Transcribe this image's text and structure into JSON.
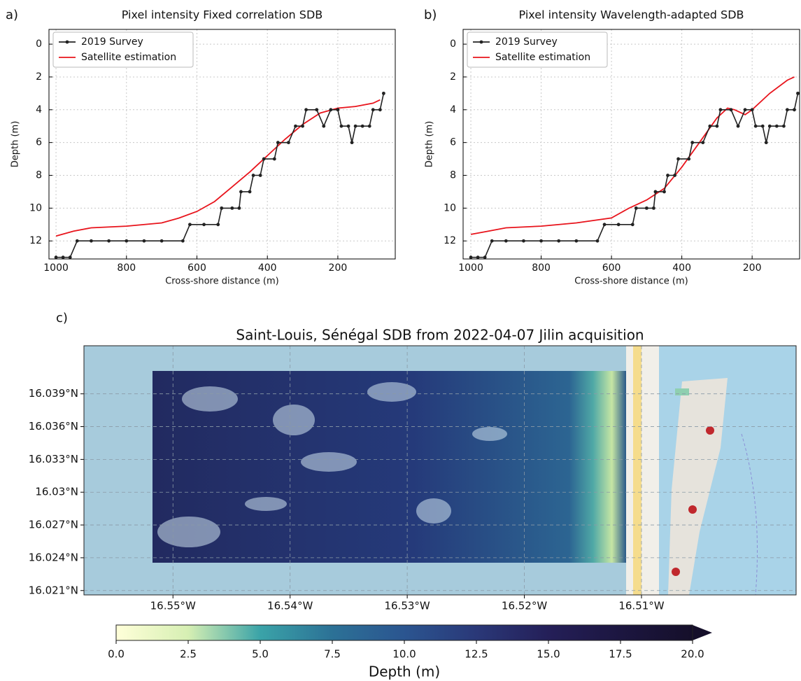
{
  "chart_data": [
    {
      "type": "line",
      "panel_label": "a)",
      "title": "Pixel intensity Fixed correlation SDB",
      "x_label": "Cross-shore distance (m)",
      "y_label": "Depth (m)",
      "xlim": [
        1020,
        37
      ],
      "ylim": [
        13.1,
        -0.9
      ],
      "xticks": [
        1000,
        800,
        600,
        400,
        200
      ],
      "yticks": [
        0,
        2,
        4,
        6,
        8,
        10,
        12
      ],
      "grid": true,
      "legend": "upper left",
      "series": [
        {
          "name": "2019 Survey",
          "color": "#222222",
          "marker": true,
          "x": [
            1000,
            980,
            960,
            940,
            900,
            850,
            800,
            750,
            700,
            640,
            620,
            580,
            540,
            530,
            500,
            480,
            475,
            450,
            440,
            420,
            410,
            380,
            370,
            340,
            320,
            300,
            290,
            260,
            240,
            220,
            200,
            190,
            170,
            160,
            150,
            130,
            110,
            100,
            80,
            70
          ],
          "values": [
            13,
            13,
            13,
            12,
            12,
            12,
            12,
            12,
            12,
            12,
            11,
            11,
            11,
            10,
            10,
            10,
            9,
            9,
            8,
            8,
            7,
            7,
            6,
            6,
            5,
            5,
            4,
            4,
            5,
            4,
            4,
            5,
            5,
            6,
            5,
            5,
            5,
            4,
            4,
            3
          ]
        },
        {
          "name": "Satellite estimation",
          "color": "#e8141c",
          "marker": false,
          "x": [
            1000,
            950,
            900,
            800,
            700,
            650,
            600,
            550,
            500,
            450,
            400,
            350,
            300,
            250,
            200,
            150,
            100,
            80
          ],
          "values": [
            11.7,
            11.4,
            11.2,
            11.1,
            10.9,
            10.6,
            10.2,
            9.6,
            8.7,
            7.8,
            6.8,
            5.8,
            4.9,
            4.2,
            3.9,
            3.8,
            3.6,
            3.4
          ]
        }
      ]
    },
    {
      "type": "line",
      "panel_label": "b)",
      "title": "Pixel intensity Wavelength-adapted SDB",
      "x_label": "Cross-shore distance (m)",
      "y_label": "Depth (m)",
      "xlim": [
        1022,
        65
      ],
      "ylim": [
        13.1,
        -0.9
      ],
      "xticks": [
        1000,
        800,
        600,
        400,
        200
      ],
      "yticks": [
        0,
        2,
        4,
        6,
        8,
        10,
        12
      ],
      "grid": true,
      "legend": "upper left",
      "series": [
        {
          "name": "2019 Survey",
          "color": "#222222",
          "marker": true,
          "x": [
            1000,
            980,
            960,
            940,
            900,
            850,
            800,
            750,
            700,
            640,
            620,
            580,
            540,
            530,
            500,
            480,
            475,
            450,
            440,
            420,
            410,
            380,
            370,
            340,
            320,
            300,
            290,
            260,
            240,
            220,
            200,
            190,
            170,
            160,
            150,
            130,
            110,
            100,
            80,
            70
          ],
          "values": [
            13,
            13,
            13,
            12,
            12,
            12,
            12,
            12,
            12,
            12,
            11,
            11,
            11,
            10,
            10,
            10,
            9,
            9,
            8,
            8,
            7,
            7,
            6,
            6,
            5,
            5,
            4,
            4,
            5,
            4,
            4,
            5,
            5,
            6,
            5,
            5,
            5,
            4,
            4,
            3
          ]
        },
        {
          "name": "Satellite estimation",
          "color": "#e8141c",
          "marker": false,
          "x": [
            1000,
            950,
            900,
            800,
            700,
            600,
            550,
            500,
            450,
            400,
            350,
            300,
            270,
            250,
            220,
            200,
            150,
            100,
            80
          ],
          "values": [
            11.6,
            11.4,
            11.2,
            11.1,
            10.9,
            10.6,
            10.0,
            9.5,
            8.8,
            7.5,
            6.0,
            4.5,
            3.9,
            4.0,
            4.3,
            4.0,
            3.0,
            2.2,
            2.0
          ]
        }
      ]
    },
    {
      "type": "map",
      "panel_label": "c)",
      "title": "Saint-Louis, Sénégal SDB from 2022-04-07 Jilin acquisition",
      "xlim": [
        -16.5576,
        -16.4968
      ],
      "ylim": [
        16.0206,
        16.0434
      ],
      "grid": true,
      "xticks": [
        {
          "value": -16.55,
          "label": "16.55°W"
        },
        {
          "value": -16.54,
          "label": "16.54°W"
        },
        {
          "value": -16.53,
          "label": "16.53°W"
        },
        {
          "value": -16.52,
          "label": "16.52°W"
        },
        {
          "value": -16.51,
          "label": "16.51°W"
        }
      ],
      "yticks": [
        {
          "value": 16.039,
          "label": "16.039°N"
        },
        {
          "value": 16.036,
          "label": "16.036°N"
        },
        {
          "value": 16.033,
          "label": "16.033°N"
        },
        {
          "value": 16.03,
          "label": "16.03°N"
        },
        {
          "value": 16.027,
          "label": "16.027°N"
        },
        {
          "value": 16.024,
          "label": "16.024°N"
        },
        {
          "value": 16.021,
          "label": "16.021°N"
        }
      ],
      "colorbar": {
        "label": "Depth (m)",
        "lim": [
          0,
          20
        ],
        "extend": "max",
        "colors": [
          "#ffffd9",
          "#d6efb3",
          "#3aa3a8",
          "#2c7196",
          "#2b5590",
          "#2a3878",
          "#241f58",
          "#1c1640",
          "#150f2a"
        ],
        "ticks": [
          {
            "value": 0,
            "label": "0.0"
          },
          {
            "value": 2.5,
            "label": "2.5"
          },
          {
            "value": 5,
            "label": "5.0"
          },
          {
            "value": 7.5,
            "label": "7.5"
          },
          {
            "value": 10,
            "label": "10.0"
          },
          {
            "value": 12.5,
            "label": "12.5"
          },
          {
            "value": 15,
            "label": "15.0"
          },
          {
            "value": 17.5,
            "label": "17.5"
          },
          {
            "value": 20,
            "label": "20.0"
          }
        ]
      }
    }
  ]
}
